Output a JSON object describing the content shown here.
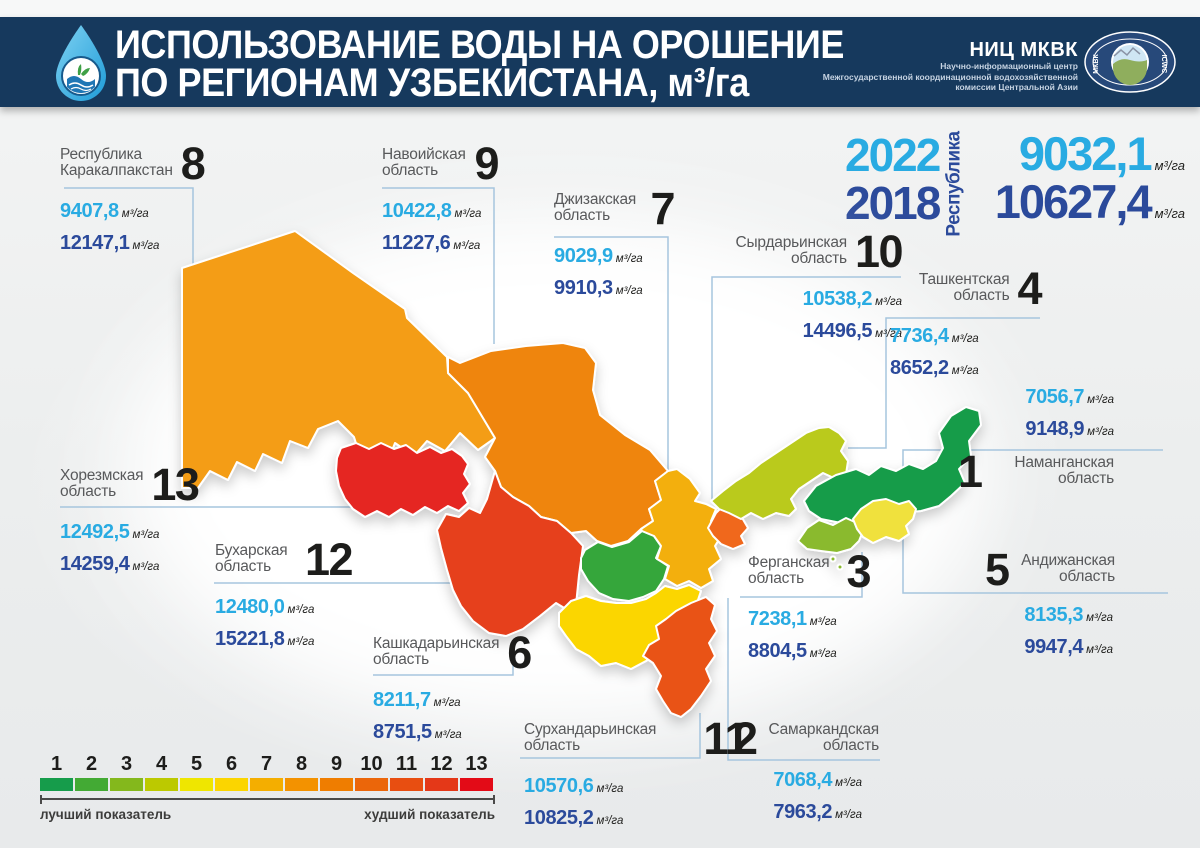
{
  "header": {
    "title_line1": "ИСПОЛЬЗОВАНИЕ ВОДЫ НА ОРОШЕНИЕ",
    "title_line2": "ПО РЕГИОНАМ УЗБЕКИСТАНА, м³/га",
    "org_name": "НИЦ МКВК",
    "org_desc1": "Научно-информационный центр",
    "org_desc2": "Межгосударственной координационной водохозяйственной",
    "org_desc3": "комиссии Центральной Азии",
    "emblem_left": "МКВК",
    "emblem_right": "ICWC"
  },
  "summary": {
    "year1": "2022",
    "year2": "2018",
    "scope_label": "Республика",
    "value_2022": "9032,1",
    "value_2018": "10627,4"
  },
  "unit": "м³/га",
  "colors": {
    "accent_2022": "#29abe2",
    "accent_2018": "#2b4a9b",
    "header_bg": "#16395d",
    "leader_line": "#a6c5de"
  },
  "regions": [
    {
      "name1": "Республика",
      "name2": "Каракалпакстан",
      "rank": "8",
      "v2022": "9407,8",
      "v2018": "12147,1",
      "color": "#F49D13"
    },
    {
      "name1": "Навоийская",
      "name2": "область",
      "rank": "9",
      "v2022": "10422,8",
      "v2018": "11227,6",
      "color": "#EF8508"
    },
    {
      "name1": "Джизакская",
      "name2": "область",
      "rank": "7",
      "v2022": "9029,9",
      "v2018": "9910,3",
      "color": "#F3AF0D"
    },
    {
      "name1": "Сырдарьинская",
      "name2": "область",
      "rank": "10",
      "v2022": "10538,2",
      "v2018": "14496,5",
      "color": "#F0671A"
    },
    {
      "name1": "Ташкентская",
      "name2": "область",
      "rank": "4",
      "v2022": "7736,4",
      "v2018": "8652,2",
      "color": "#BACA1D"
    },
    {
      "name1": "Наманганская",
      "name2": "область",
      "rank": "1",
      "v2022": "7056,7",
      "v2018": "9148,9",
      "color": "#189C48"
    },
    {
      "name1": "Андижанская",
      "name2": "область",
      "rank": "5",
      "v2022": "8135,3",
      "v2018": "9947,4",
      "color": "#F0E13C"
    },
    {
      "name1": "Ферганская",
      "name2": "область",
      "rank": "3",
      "v2022": "7238,1",
      "v2018": "8804,5",
      "color": "#8ABA2E"
    },
    {
      "name1": "Самаркандская",
      "name2": "область",
      "rank": "2",
      "v2022": "7068,4",
      "v2018": "7963,2",
      "color": "#35A63A"
    },
    {
      "name1": "Сурхандарьинская",
      "name2": "область",
      "rank": "11",
      "v2022": "10570,6",
      "v2018": "10825,2",
      "color": "#E95317"
    },
    {
      "name1": "Кашкадарьинская",
      "name2": "область",
      "rank": "6",
      "v2022": "8211,7",
      "v2018": "8751,5",
      "color": "#FBD605"
    },
    {
      "name1": "Бухарская",
      "name2": "область",
      "rank": "12",
      "v2022": "12480,0",
      "v2018": "15221,8",
      "color": "#E6401C"
    },
    {
      "name1": "Хорезмская",
      "name2": "область",
      "rank": "13",
      "v2022": "12492,5",
      "v2018": "14259,4",
      "color": "#E52521"
    }
  ],
  "legend": {
    "ranks": [
      "1",
      "2",
      "3",
      "4",
      "5",
      "6",
      "7",
      "8",
      "9",
      "10",
      "11",
      "12",
      "13"
    ],
    "colors": [
      "#169C4B",
      "#43AA34",
      "#84B81C",
      "#BCC900",
      "#EFE600",
      "#FBD500",
      "#F4AE00",
      "#F39200",
      "#EF7D00",
      "#EB660A",
      "#E84E11",
      "#E43818",
      "#E30B17"
    ],
    "best_label": "лучший показатель",
    "worst_label": "худший показатель"
  }
}
